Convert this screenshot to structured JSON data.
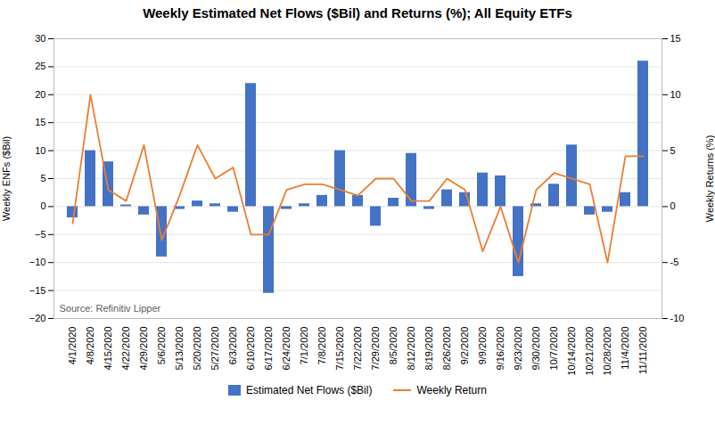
{
  "chart_data": {
    "type": "bar",
    "title": "Weekly Estimated Net Flows ($Bil) and Returns (%); All Equity ETFs",
    "ylabel": "Weekly ENFs ($Bil)",
    "y2label": "Weekly Returns (%)",
    "annotation": "Source: Refinitiv Lipper",
    "categories": [
      "4/1/2020",
      "4/8/2020",
      "4/15/2020",
      "4/22/2020",
      "4/29/2020",
      "5/6/2020",
      "5/13/2020",
      "5/20/2020",
      "5/27/2020",
      "6/3/2020",
      "6/10/2020",
      "6/17/2020",
      "6/24/2020",
      "7/1/2020",
      "7/8/2020",
      "7/15/2020",
      "7/22/2020",
      "7/29/2020",
      "8/5/2020",
      "8/12/2020",
      "8/19/2020",
      "8/26/2020",
      "9/2/2020",
      "9/9/2020",
      "9/16/2020",
      "9/23/2020",
      "9/30/2020",
      "10/7/2020",
      "10/14/2020",
      "10/21/2020",
      "10/28/2020",
      "11/4/2020",
      "11/11/2020"
    ],
    "series": [
      {
        "name": "Estimated Net Flows ($Bil)",
        "type": "bar",
        "color": "#4472C4",
        "values": [
          -2.0,
          10.0,
          8.0,
          0.3,
          -1.5,
          -9.0,
          -0.5,
          1.0,
          0.5,
          -1.0,
          22.0,
          -15.5,
          -0.5,
          0.5,
          2.0,
          10.0,
          2.0,
          -3.5,
          1.5,
          9.5,
          -0.5,
          3.0,
          2.5,
          6.0,
          5.5,
          -12.5,
          0.5,
          4.0,
          11.0,
          -1.5,
          -1.0,
          2.5,
          26.0
        ]
      },
      {
        "name": "Weekly Return",
        "type": "line",
        "color": "#ED7D31",
        "axis": "y2",
        "values": [
          -1.5,
          10.0,
          1.5,
          0.5,
          5.5,
          -3.0,
          1.0,
          5.5,
          2.5,
          3.5,
          -2.5,
          -2.5,
          1.5,
          2.0,
          2.0,
          1.5,
          1.0,
          2.5,
          2.5,
          0.5,
          0.5,
          2.5,
          1.5,
          -4.0,
          0.0,
          -5.0,
          1.5,
          3.0,
          2.5,
          2.0,
          -5.0,
          4.5,
          4.5
        ]
      }
    ],
    "ylim": [
      -20,
      30
    ],
    "yticks": [
      -20,
      -15,
      -10,
      -5,
      0,
      5,
      10,
      15,
      20,
      25,
      30
    ],
    "y2lim": [
      -10,
      15
    ],
    "y2ticks": [
      -10,
      -5,
      0,
      5,
      10,
      15
    ],
    "grid": true,
    "legend": "bottom"
  }
}
